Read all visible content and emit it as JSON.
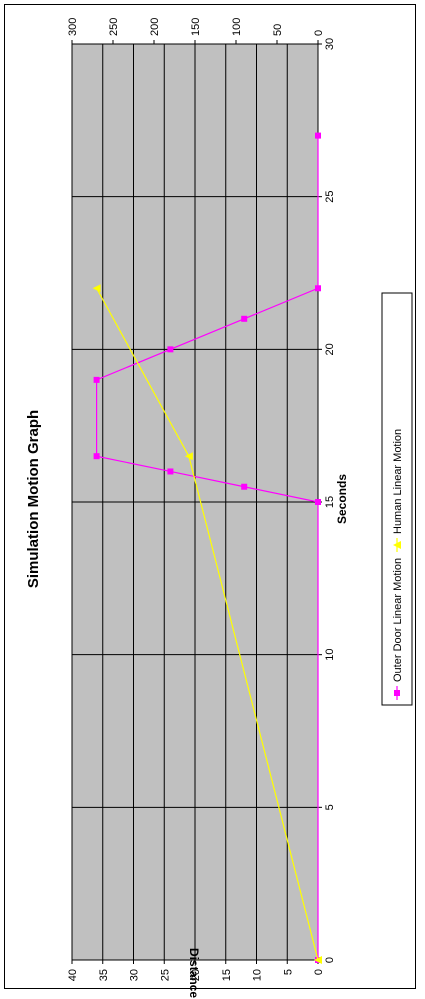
{
  "chart_data": {
    "type": "line",
    "orientation": "rotated-90",
    "title": "Simulation Motion Graph",
    "xlabel": "Seconds",
    "ylabel": "Distance",
    "xlim": [
      0,
      30
    ],
    "ylim": [
      0,
      40
    ],
    "y2lim": [
      0,
      300
    ],
    "x_ticks": [
      "0",
      "5",
      "10",
      "15",
      "20",
      "25",
      "30"
    ],
    "y_ticks": [
      "0",
      "5",
      "10",
      "15",
      "20",
      "25",
      "30",
      "35",
      "40"
    ],
    "y2_ticks": [
      "0",
      "50",
      "100",
      "150",
      "200",
      "250",
      "300"
    ],
    "grid": true,
    "plot_background": "#c0c0c0",
    "legend_position": "bottom",
    "series": [
      {
        "name": "Outer Door Linear Motion",
        "color": "#ff00ff",
        "marker": "square",
        "axis": "secondary",
        "x": [
          0,
          15,
          15.5,
          16,
          16.5,
          19,
          20,
          21,
          22,
          27
        ],
        "y": [
          0,
          0,
          90,
          180,
          270,
          270,
          180,
          90,
          0,
          0
        ]
      },
      {
        "name": "Human Linear Motion",
        "color": "#ffff00",
        "marker": "triangle",
        "axis": "primary",
        "x": [
          0,
          16.5,
          22
        ],
        "y": [
          0,
          21,
          36
        ]
      }
    ]
  }
}
